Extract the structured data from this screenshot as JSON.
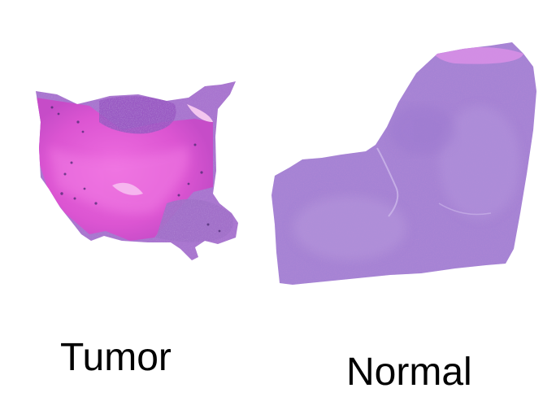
{
  "labels": {
    "tumor": "Tumor",
    "normal": "Normal"
  },
  "colors": {
    "background": "#ffffff",
    "tumor_stroma": "#e25fd6",
    "tumor_cells": "#9a4fc0",
    "normal_tissue": "#a985d6",
    "normal_edge": "#d693e6",
    "text": "#000000"
  }
}
